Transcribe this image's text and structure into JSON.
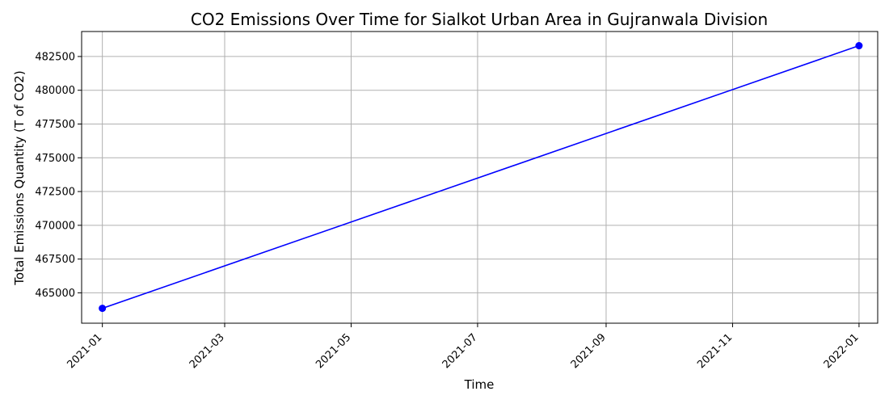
{
  "chart_data": {
    "type": "line",
    "title": "CO2 Emissions Over Time for Sialkot Urban Area in Gujranwala Division",
    "xlabel": "Time",
    "ylabel": "Total Emissions Quantity (T of CO2)",
    "x_ticks": [
      "2021-01",
      "2021-03",
      "2021-05",
      "2021-07",
      "2021-09",
      "2021-11",
      "2022-01"
    ],
    "y_ticks": [
      465000,
      467500,
      470000,
      472500,
      475000,
      477500,
      480000,
      482500
    ],
    "xlim": [
      "2020-12-22",
      "2022-01-10"
    ],
    "ylim": [
      462750,
      484350
    ],
    "grid": true,
    "series": [
      {
        "color": "#0000ff",
        "marker": "circle",
        "points": [
          {
            "x": "2021-01-01",
            "y": 463850
          },
          {
            "x": "2022-01-01",
            "y": 483300
          }
        ]
      }
    ]
  }
}
